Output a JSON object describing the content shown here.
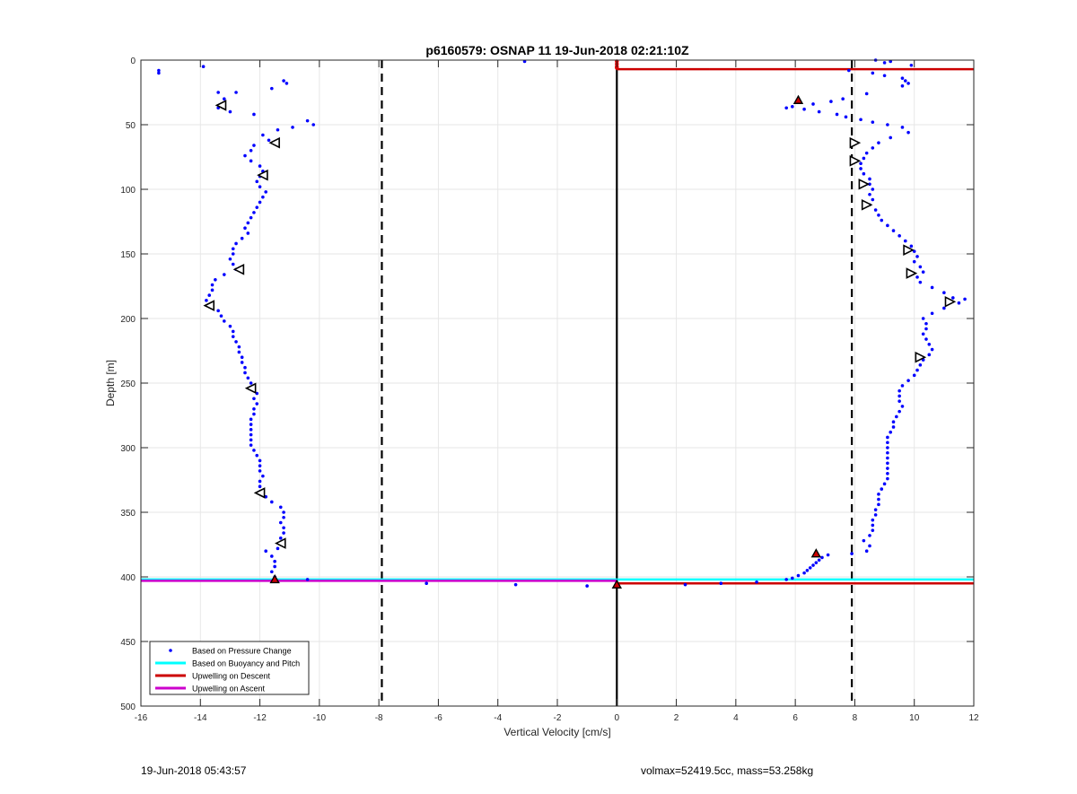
{
  "chart_data": {
    "type": "scatter",
    "title": "p6160579: OSNAP 11 19-Jun-2018 02:21:10Z",
    "xlabel": "Vertical Velocity [cm/s]",
    "ylabel": "Depth [m]",
    "xlim": [
      -16,
      12
    ],
    "ylim": [
      0,
      500
    ],
    "y_reversed": true,
    "x_ticks": [
      -16,
      -14,
      -12,
      -10,
      -8,
      -6,
      -4,
      -2,
      0,
      2,
      4,
      6,
      8,
      10,
      12
    ],
    "y_ticks": [
      0,
      50,
      100,
      150,
      200,
      250,
      300,
      350,
      400,
      450,
      500
    ],
    "grid": true,
    "legend_placement": "bottom-left",
    "legend": [
      {
        "label": "Based on Pressure Change",
        "color": "#0000ff",
        "style": "dot"
      },
      {
        "label": "Based on Buoyancy and Pitch",
        "color": "#00ffff",
        "style": "line"
      },
      {
        "label": "Upwelling on Descent",
        "color": "#cc0000",
        "style": "line"
      },
      {
        "label": "Upwelling on Ascent",
        "color": "#cc00cc",
        "style": "line"
      }
    ],
    "reference_lines": {
      "dashed_vertical_x": [
        -7.9,
        7.9
      ],
      "solid_vertical_x": [
        0
      ]
    },
    "series": [
      {
        "name": "Based on Pressure Change",
        "color": "#0000ff",
        "ascent_points": [
          [
            -15.4,
            8
          ],
          [
            -15.4,
            10
          ],
          [
            -13.9,
            5
          ],
          [
            -13.4,
            25
          ],
          [
            -12.8,
            25
          ],
          [
            -11.6,
            22
          ],
          [
            -11.2,
            16
          ],
          [
            -11.1,
            18
          ],
          [
            -13.2,
            30
          ],
          [
            -13.2,
            33
          ],
          [
            -13.4,
            37
          ],
          [
            -12.2,
            42
          ],
          [
            -13.0,
            40
          ],
          [
            -10.4,
            47
          ],
          [
            -10.2,
            50
          ],
          [
            -10.9,
            52
          ],
          [
            -11.4,
            54
          ],
          [
            -11.9,
            58
          ],
          [
            -11.7,
            62
          ],
          [
            -12.2,
            66
          ],
          [
            -12.3,
            70
          ],
          [
            -12.5,
            74
          ],
          [
            -12.3,
            78
          ],
          [
            -12.0,
            82
          ],
          [
            -11.9,
            86
          ],
          [
            -12.0,
            90
          ],
          [
            -12.1,
            94
          ],
          [
            -12.0,
            98
          ],
          [
            -11.8,
            102
          ],
          [
            -11.9,
            106
          ],
          [
            -12.0,
            110
          ],
          [
            -12.1,
            114
          ],
          [
            -12.2,
            118
          ],
          [
            -12.3,
            122
          ],
          [
            -12.4,
            126
          ],
          [
            -12.5,
            130
          ],
          [
            -12.4,
            134
          ],
          [
            -12.6,
            138
          ],
          [
            -12.8,
            142
          ],
          [
            -12.9,
            146
          ],
          [
            -12.9,
            150
          ],
          [
            -13.0,
            154
          ],
          [
            -12.9,
            158
          ],
          [
            -12.8,
            162
          ],
          [
            -13.2,
            166
          ],
          [
            -13.5,
            170
          ],
          [
            -13.6,
            174
          ],
          [
            -13.6,
            178
          ],
          [
            -13.7,
            182
          ],
          [
            -13.8,
            186
          ],
          [
            -13.6,
            190
          ],
          [
            -13.4,
            194
          ],
          [
            -13.3,
            198
          ],
          [
            -13.2,
            202
          ],
          [
            -13.0,
            206
          ],
          [
            -12.9,
            210
          ],
          [
            -12.9,
            214
          ],
          [
            -12.8,
            218
          ],
          [
            -12.7,
            222
          ],
          [
            -12.7,
            226
          ],
          [
            -12.6,
            230
          ],
          [
            -12.6,
            234
          ],
          [
            -12.5,
            238
          ],
          [
            -12.5,
            242
          ],
          [
            -12.4,
            246
          ],
          [
            -12.3,
            250
          ],
          [
            -12.2,
            254
          ],
          [
            -12.1,
            258
          ],
          [
            -12.2,
            262
          ],
          [
            -12.1,
            266
          ],
          [
            -12.2,
            270
          ],
          [
            -12.2,
            274
          ],
          [
            -12.3,
            278
          ],
          [
            -12.3,
            282
          ],
          [
            -12.3,
            286
          ],
          [
            -12.3,
            290
          ],
          [
            -12.3,
            294
          ],
          [
            -12.3,
            298
          ],
          [
            -12.2,
            302
          ],
          [
            -12.1,
            306
          ],
          [
            -12.0,
            310
          ],
          [
            -12.0,
            314
          ],
          [
            -12.0,
            318
          ],
          [
            -11.9,
            322
          ],
          [
            -12.0,
            326
          ],
          [
            -12.0,
            330
          ],
          [
            -12.0,
            334
          ],
          [
            -11.8,
            338
          ],
          [
            -11.6,
            342
          ],
          [
            -11.3,
            346
          ],
          [
            -11.2,
            350
          ],
          [
            -11.2,
            354
          ],
          [
            -11.3,
            358
          ],
          [
            -11.2,
            362
          ],
          [
            -11.2,
            366
          ],
          [
            -11.3,
            370
          ],
          [
            -11.3,
            374
          ],
          [
            -11.4,
            378
          ],
          [
            -11.8,
            380
          ],
          [
            -11.6,
            384
          ],
          [
            -11.5,
            388
          ],
          [
            -11.5,
            392
          ],
          [
            -11.6,
            396
          ],
          [
            -11.5,
            400
          ],
          [
            -10.4,
            402
          ],
          [
            -6.4,
            405
          ],
          [
            -3.4,
            406
          ],
          [
            -1.0,
            407
          ]
        ],
        "descent_points": [
          [
            -3.1,
            1
          ],
          [
            8.7,
            0
          ],
          [
            9.0,
            2
          ],
          [
            9.2,
            1
          ],
          [
            9.9,
            4
          ],
          [
            7.8,
            8
          ],
          [
            8.6,
            10
          ],
          [
            9.0,
            12
          ],
          [
            9.6,
            14
          ],
          [
            9.7,
            16
          ],
          [
            9.8,
            18
          ],
          [
            9.6,
            20
          ],
          [
            8.4,
            26
          ],
          [
            7.6,
            30
          ],
          [
            7.2,
            32
          ],
          [
            6.6,
            34
          ],
          [
            5.9,
            36
          ],
          [
            5.7,
            37
          ],
          [
            6.3,
            38
          ],
          [
            6.8,
            40
          ],
          [
            7.4,
            42
          ],
          [
            7.7,
            44
          ],
          [
            8.2,
            46
          ],
          [
            8.6,
            48
          ],
          [
            9.1,
            50
          ],
          [
            9.6,
            52
          ],
          [
            9.8,
            56
          ],
          [
            9.2,
            60
          ],
          [
            8.8,
            64
          ],
          [
            8.6,
            68
          ],
          [
            8.4,
            72
          ],
          [
            8.3,
            76
          ],
          [
            8.2,
            80
          ],
          [
            8.2,
            84
          ],
          [
            8.3,
            88
          ],
          [
            8.5,
            92
          ],
          [
            8.5,
            96
          ],
          [
            8.6,
            100
          ],
          [
            8.5,
            104
          ],
          [
            8.6,
            108
          ],
          [
            8.5,
            112
          ],
          [
            8.7,
            116
          ],
          [
            8.8,
            120
          ],
          [
            8.9,
            124
          ],
          [
            9.1,
            128
          ],
          [
            9.3,
            132
          ],
          [
            9.5,
            136
          ],
          [
            9.7,
            140
          ],
          [
            9.9,
            144
          ],
          [
            10.0,
            148
          ],
          [
            10.1,
            152
          ],
          [
            10.0,
            156
          ],
          [
            10.2,
            160
          ],
          [
            10.3,
            164
          ],
          [
            10.1,
            168
          ],
          [
            10.2,
            172
          ],
          [
            10.6,
            176
          ],
          [
            11.0,
            180
          ],
          [
            11.3,
            184
          ],
          [
            11.7,
            185
          ],
          [
            11.5,
            188
          ],
          [
            11.0,
            192
          ],
          [
            10.6,
            196
          ],
          [
            10.3,
            200
          ],
          [
            10.4,
            204
          ],
          [
            10.4,
            208
          ],
          [
            10.3,
            212
          ],
          [
            10.4,
            216
          ],
          [
            10.5,
            220
          ],
          [
            10.6,
            224
          ],
          [
            10.5,
            228
          ],
          [
            10.3,
            232
          ],
          [
            10.2,
            236
          ],
          [
            10.1,
            240
          ],
          [
            10.0,
            244
          ],
          [
            9.8,
            248
          ],
          [
            9.6,
            252
          ],
          [
            9.5,
            256
          ],
          [
            9.5,
            260
          ],
          [
            9.5,
            264
          ],
          [
            9.6,
            268
          ],
          [
            9.5,
            272
          ],
          [
            9.4,
            276
          ],
          [
            9.3,
            280
          ],
          [
            9.3,
            284
          ],
          [
            9.2,
            288
          ],
          [
            9.1,
            292
          ],
          [
            9.1,
            296
          ],
          [
            9.1,
            300
          ],
          [
            9.1,
            304
          ],
          [
            9.1,
            308
          ],
          [
            9.1,
            312
          ],
          [
            9.1,
            316
          ],
          [
            9.1,
            320
          ],
          [
            9.1,
            324
          ],
          [
            9.0,
            328
          ],
          [
            8.9,
            332
          ],
          [
            8.8,
            336
          ],
          [
            8.8,
            340
          ],
          [
            8.8,
            344
          ],
          [
            8.7,
            348
          ],
          [
            8.7,
            352
          ],
          [
            8.6,
            356
          ],
          [
            8.6,
            360
          ],
          [
            8.6,
            364
          ],
          [
            8.5,
            368
          ],
          [
            8.3,
            372
          ],
          [
            8.5,
            376
          ],
          [
            8.4,
            380
          ],
          [
            7.9,
            382
          ],
          [
            7.1,
            383
          ],
          [
            6.9,
            385
          ],
          [
            6.8,
            387
          ],
          [
            6.7,
            389
          ],
          [
            6.6,
            391
          ],
          [
            6.5,
            393
          ],
          [
            6.4,
            395
          ],
          [
            6.3,
            397
          ],
          [
            6.1,
            399
          ],
          [
            5.9,
            401
          ],
          [
            5.7,
            402
          ],
          [
            4.7,
            404
          ],
          [
            3.5,
            405
          ],
          [
            2.3,
            406
          ]
        ]
      }
    ],
    "markers": {
      "triangles_ascent": [
        [
          -13.3,
          35
        ],
        [
          -11.5,
          64
        ],
        [
          -11.9,
          89
        ],
        [
          -12.7,
          162
        ],
        [
          -13.7,
          190
        ],
        [
          -12.3,
          254
        ],
        [
          -12.0,
          335
        ],
        [
          -11.3,
          374
        ]
      ],
      "triangles_descent": [
        [
          8.0,
          64
        ],
        [
          8.0,
          78
        ],
        [
          8.3,
          96
        ],
        [
          8.4,
          112
        ],
        [
          9.8,
          147
        ],
        [
          9.9,
          165
        ],
        [
          11.2,
          187
        ],
        [
          10.2,
          230
        ]
      ],
      "red_markers": [
        [
          6.1,
          31
        ],
        [
          6.7,
          382
        ],
        [
          -11.5,
          402
        ],
        [
          0.0,
          406
        ]
      ],
      "red_dots_top": [
        [
          0.0,
          1
        ],
        [
          0.0,
          3
        ],
        [
          0.0,
          5
        ],
        [
          0.0,
          6
        ]
      ]
    },
    "horizontal_lines": [
      {
        "label": "Based on Buoyancy and Pitch",
        "color": "#00ffff",
        "y": 402,
        "x_range": [
          0,
          12
        ]
      },
      {
        "label": "Based on Buoyancy and Pitch",
        "color": "#00ffff",
        "y": 402,
        "x_range": [
          -16,
          0
        ]
      },
      {
        "label": "Upwelling on Ascent",
        "color": "#cc00cc",
        "y": 403,
        "x_range": [
          -16,
          0
        ]
      },
      {
        "label": "Upwelling on Descent",
        "color": "#cc0000",
        "y": 405,
        "x_range": [
          0,
          12
        ]
      },
      {
        "label": "Upwelling on Descent",
        "color": "#cc0000",
        "y": 7,
        "x_range": [
          3.1,
          12
        ]
      },
      {
        "label": "Upwelling on Descent",
        "color": "#cc0000",
        "y": 7,
        "x_range": [
          0,
          3.1
        ]
      }
    ]
  },
  "footer": {
    "left_timestamp": "19-Jun-2018 05:43:57",
    "right_info": "volmax=52419.5cc, mass=53.258kg"
  }
}
